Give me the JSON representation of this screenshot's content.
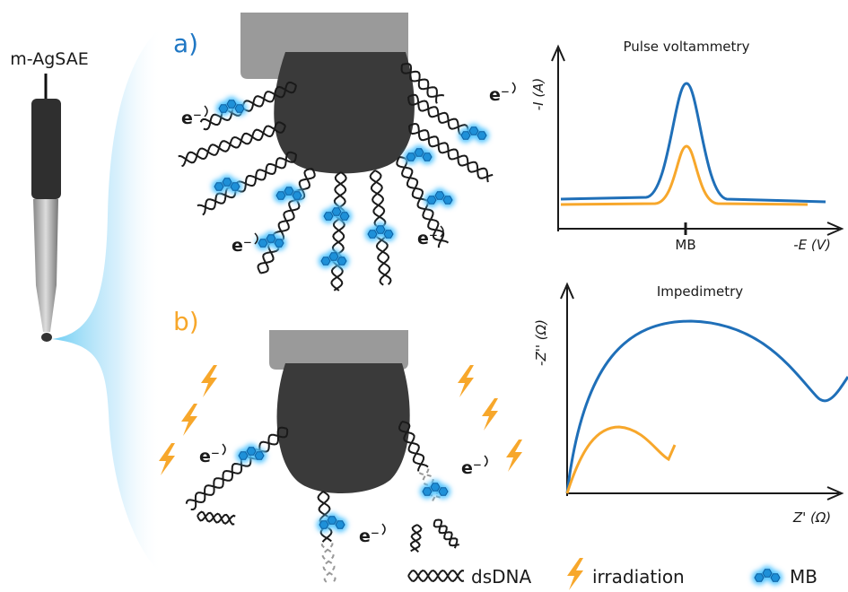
{
  "electrode": {
    "label": "m-AgSAE"
  },
  "panels": [
    {
      "label": "a)",
      "electrons": [
        "e⁻",
        "e⁻",
        "e⁻",
        "e⁻"
      ]
    },
    {
      "label": "b)",
      "electrons": [
        "e⁻",
        "e⁻",
        "e⁻"
      ]
    }
  ],
  "plots": [
    {
      "title": "Pulse voltammetry",
      "y_label": "-I (A)",
      "x_label": "-E (V)",
      "x_tick": "MB"
    },
    {
      "title": "Impedimetry",
      "y_label": "-Z'' (Ω)",
      "x_label": "Z' (Ω)"
    }
  ],
  "legend": [
    "dsDNA",
    "irradiation",
    "MB"
  ]
}
